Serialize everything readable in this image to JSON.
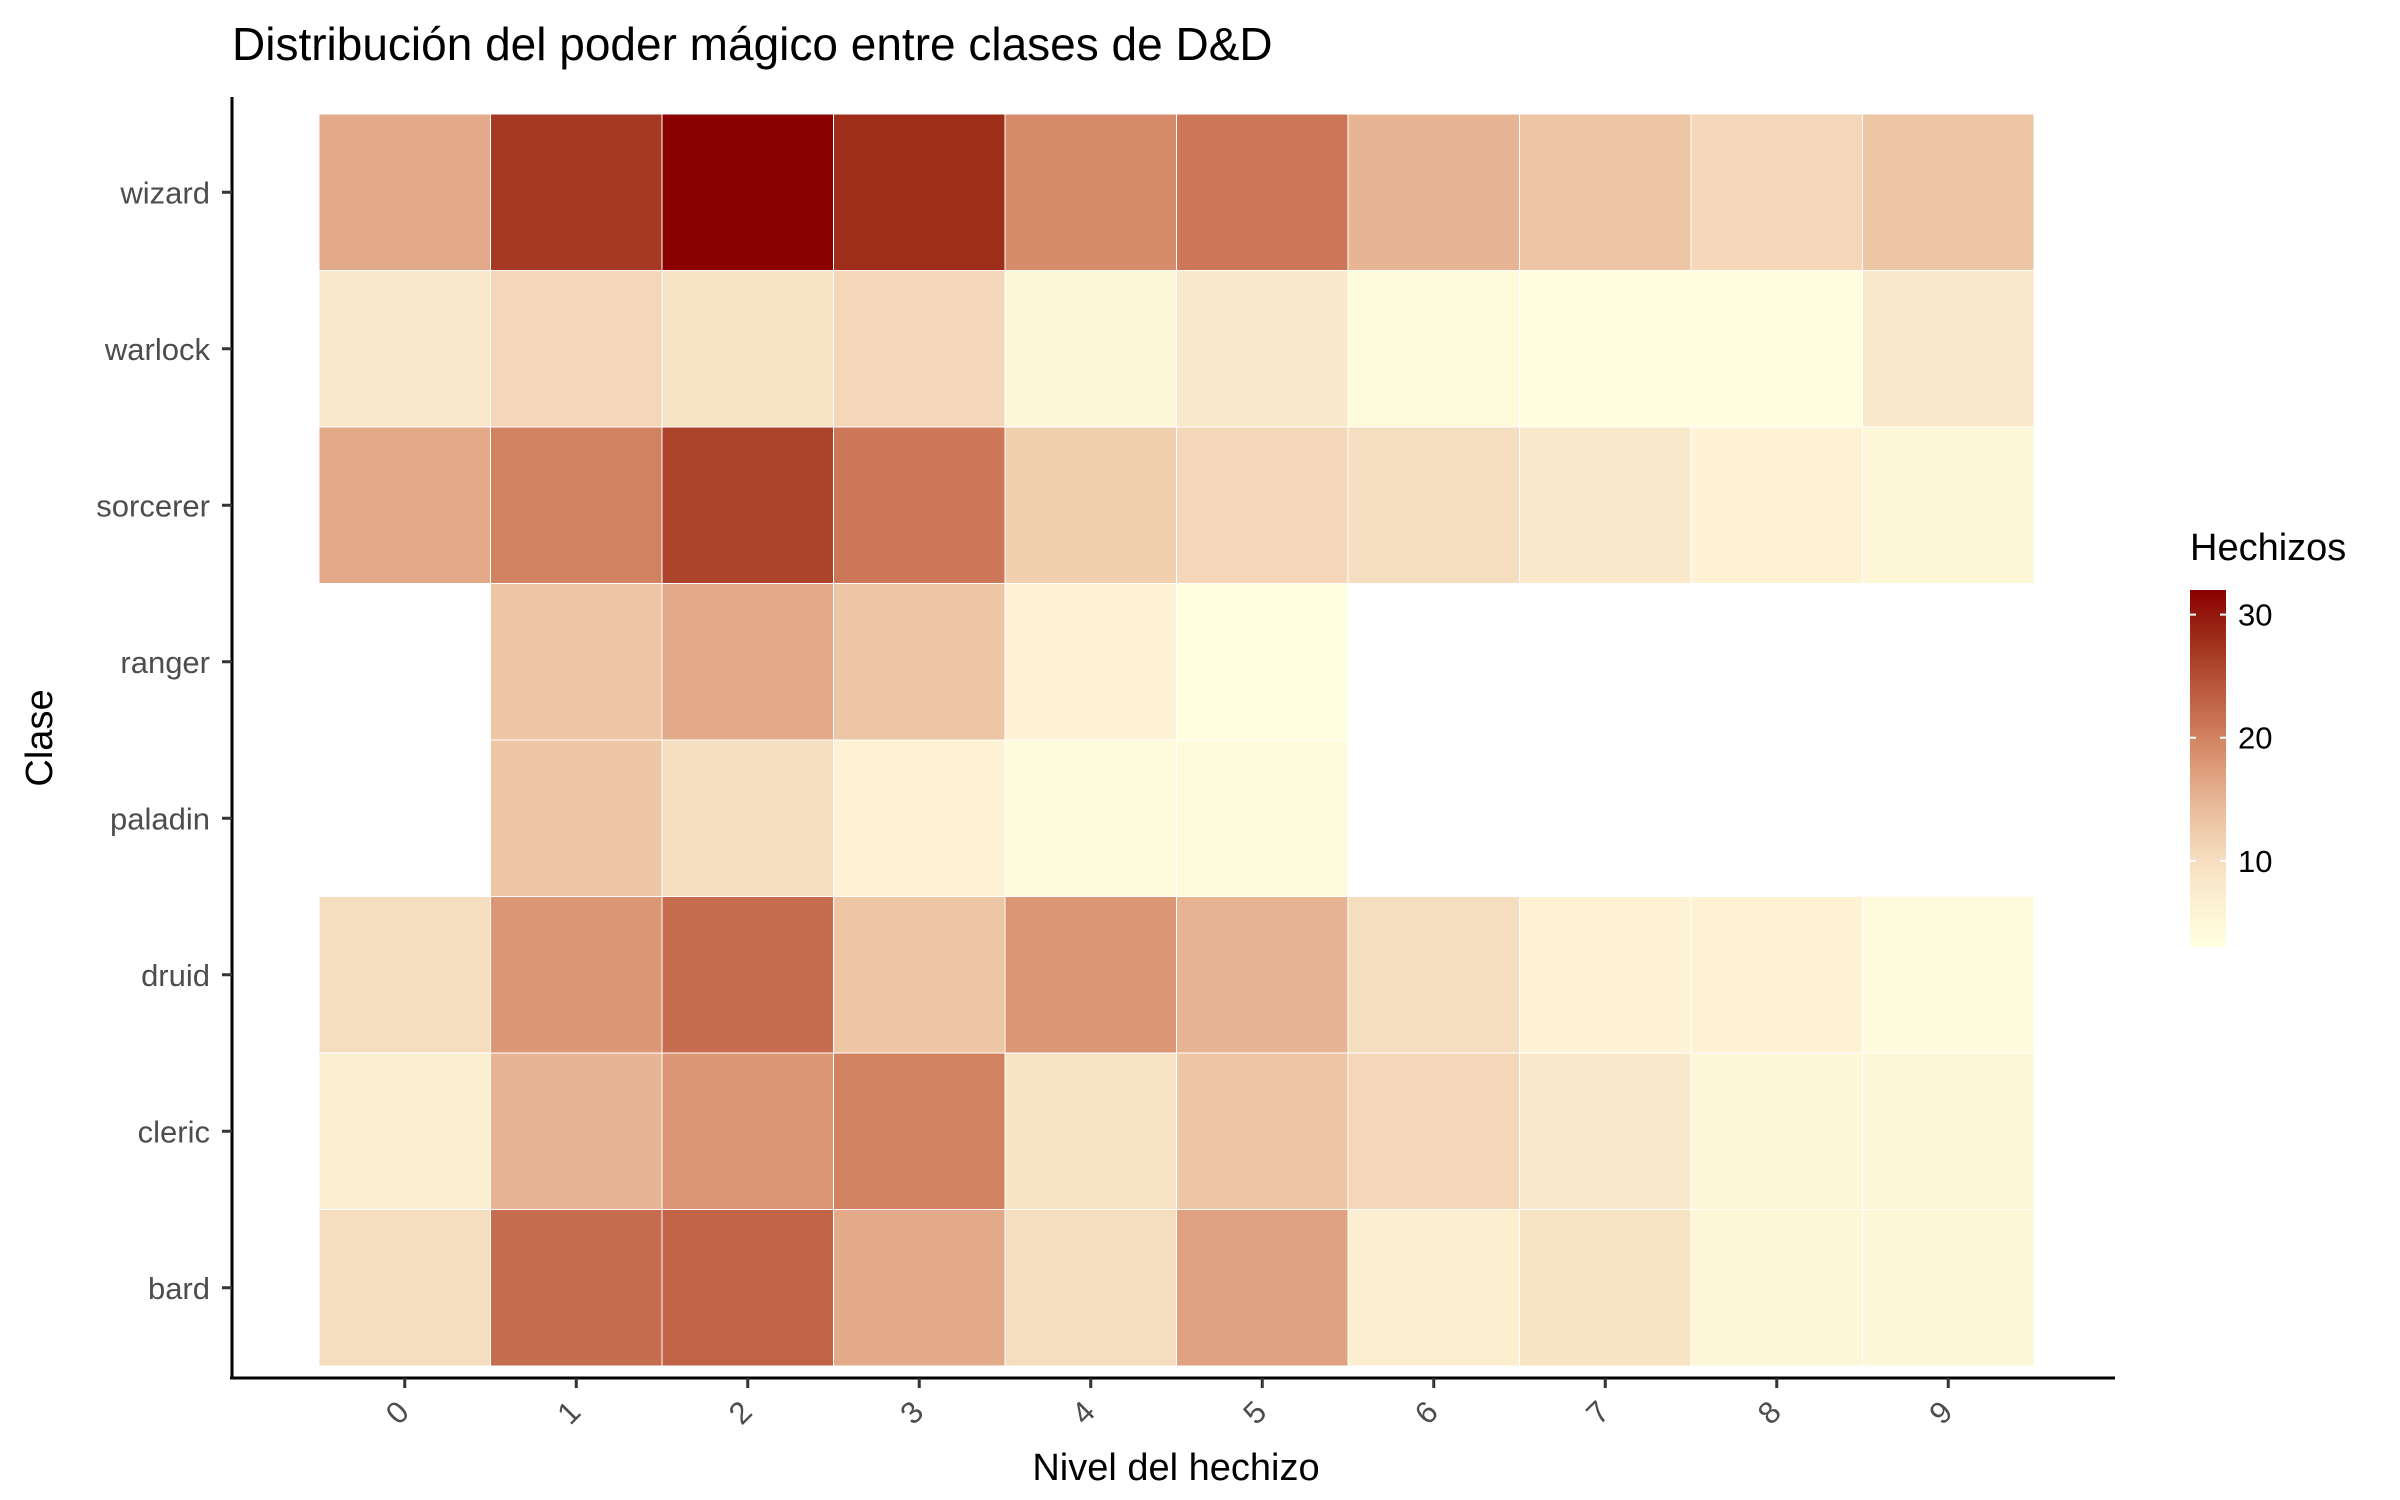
{
  "chart_data": {
    "type": "heatmap",
    "title": "Distribución del poder mágico entre clases de D&D",
    "xlabel": "Nivel del hechizo",
    "ylabel": "Clase",
    "x_categories": [
      "0",
      "1",
      "2",
      "3",
      "4",
      "5",
      "6",
      "7",
      "8",
      "9"
    ],
    "y_categories": [
      "bard",
      "cleric",
      "druid",
      "paladin",
      "ranger",
      "sorcerer",
      "warlock",
      "wizard"
    ],
    "values": {
      "wizard": [
        16,
        27,
        32,
        28,
        19,
        21,
        15,
        13,
        11,
        13
      ],
      "warlock": [
        8,
        11,
        9,
        11,
        5,
        8,
        4,
        3.5,
        3.5,
        8
      ],
      "sorcerer": [
        16,
        20,
        26,
        21,
        12,
        11,
        10,
        8,
        6,
        5
      ],
      "ranger": [
        null,
        13,
        16,
        13,
        6,
        3,
        null,
        null,
        null,
        null
      ],
      "paladin": [
        null,
        13,
        10,
        6,
        4,
        4,
        null,
        null,
        null,
        null
      ],
      "druid": [
        10,
        18,
        22,
        13,
        18,
        15,
        10,
        6,
        6,
        4
      ],
      "cleric": [
        7,
        15,
        18,
        20,
        9,
        13,
        11,
        8,
        5,
        5
      ],
      "bard": [
        10,
        22,
        23,
        16,
        10,
        17,
        7,
        9,
        5,
        5
      ]
    },
    "legend": {
      "title": "Hechizos",
      "ticks": [
        10,
        20,
        30
      ],
      "range": [
        3,
        32
      ],
      "colors": [
        "#ffffe0",
        "#fcf1d2",
        "#f5ddbe",
        "#ebbf9f",
        "#dd9c7a",
        "#cb7656",
        "#b55137",
        "#9b2a17",
        "#8b0000"
      ]
    },
    "grid": false,
    "legend_position": "right"
  }
}
